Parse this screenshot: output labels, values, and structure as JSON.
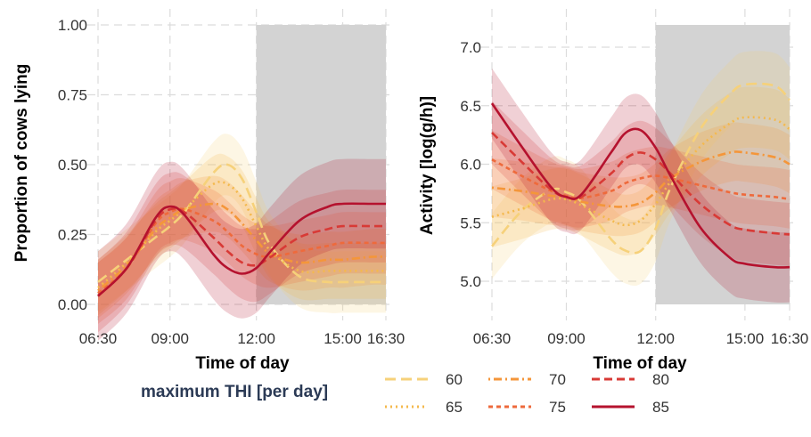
{
  "chart_data": [
    {
      "type": "line",
      "xlabel": "Time of day",
      "ylabel": "Proportion of cows lying",
      "xlim": [
        "06:30",
        "16:30"
      ],
      "ylim": [
        0,
        1
      ],
      "x_ticks": [
        "06:30",
        "09:00",
        "12:00",
        "15:00",
        "16:30"
      ],
      "y_ticks": [
        "0.00",
        "0.25",
        "0.50",
        "0.75",
        "1.00"
      ],
      "shaded_period": [
        "12:00",
        "16:30"
      ],
      "grid": true,
      "x": [
        "06:30",
        "07:30",
        "08:30",
        "09:00",
        "09:30",
        "10:30",
        "11:00",
        "11:30",
        "12:00",
        "12:30",
        "13:30",
        "14:30",
        "15:00",
        "16:00",
        "16:30"
      ],
      "series": [
        {
          "name": "60",
          "values": [
            0.08,
            0.16,
            0.24,
            0.28,
            0.33,
            0.47,
            0.5,
            0.45,
            0.33,
            0.21,
            0.1,
            0.08,
            0.08,
            0.08,
            0.08
          ],
          "band": 0.11
        },
        {
          "name": "65",
          "values": [
            0.06,
            0.15,
            0.26,
            0.3,
            0.34,
            0.43,
            0.43,
            0.38,
            0.28,
            0.19,
            0.12,
            0.12,
            0.12,
            0.12,
            0.12
          ],
          "band": 0.1
        },
        {
          "name": "70",
          "values": [
            0.05,
            0.14,
            0.27,
            0.31,
            0.34,
            0.36,
            0.34,
            0.29,
            0.23,
            0.18,
            0.15,
            0.16,
            0.16,
            0.17,
            0.17
          ],
          "band": 0.1
        },
        {
          "name": "75",
          "values": [
            0.04,
            0.13,
            0.29,
            0.33,
            0.34,
            0.3,
            0.26,
            0.21,
            0.18,
            0.17,
            0.19,
            0.21,
            0.22,
            0.22,
            0.22
          ],
          "band": 0.11
        },
        {
          "name": "80",
          "values": [
            0.03,
            0.13,
            0.3,
            0.34,
            0.33,
            0.24,
            0.19,
            0.15,
            0.14,
            0.17,
            0.24,
            0.27,
            0.28,
            0.28,
            0.28
          ],
          "band": 0.13
        },
        {
          "name": "85",
          "values": [
            0.03,
            0.13,
            0.31,
            0.35,
            0.32,
            0.18,
            0.13,
            0.11,
            0.13,
            0.19,
            0.3,
            0.35,
            0.36,
            0.36,
            0.36
          ],
          "band": 0.16
        }
      ]
    },
    {
      "type": "line",
      "xlabel": "Time of day",
      "ylabel": "Activity [log(g/h)]",
      "xlim": [
        "06:30",
        "16:30"
      ],
      "ylim": [
        4.8,
        7.2
      ],
      "x_ticks": [
        "06:30",
        "09:00",
        "12:00",
        "15:00",
        "16:30"
      ],
      "y_ticks": [
        "5.0",
        "5.5",
        "6.0",
        "6.5",
        "7.0"
      ],
      "shaded_period": [
        "12:00",
        "16:30"
      ],
      "grid": true,
      "x": [
        "06:30",
        "07:30",
        "08:30",
        "09:00",
        "09:30",
        "10:30",
        "11:00",
        "11:30",
        "12:00",
        "12:30",
        "13:30",
        "14:30",
        "15:00",
        "16:00",
        "16:30"
      ],
      "series": [
        {
          "name": "60",
          "values": [
            5.3,
            5.6,
            5.78,
            5.76,
            5.68,
            5.36,
            5.26,
            5.26,
            5.45,
            5.8,
            6.3,
            6.6,
            6.68,
            6.67,
            6.55
          ],
          "band": 0.28
        },
        {
          "name": "65",
          "values": [
            5.55,
            5.62,
            5.7,
            5.7,
            5.65,
            5.52,
            5.48,
            5.52,
            5.66,
            5.85,
            6.15,
            6.35,
            6.4,
            6.38,
            6.3
          ],
          "band": 0.26
        },
        {
          "name": "70",
          "values": [
            5.8,
            5.77,
            5.73,
            5.72,
            5.68,
            5.64,
            5.64,
            5.67,
            5.76,
            5.88,
            6.02,
            6.1,
            6.1,
            6.06,
            6.0
          ],
          "band": 0.25
        },
        {
          "name": "75",
          "values": [
            6.04,
            5.9,
            5.77,
            5.73,
            5.71,
            5.77,
            5.84,
            5.88,
            5.9,
            5.88,
            5.82,
            5.76,
            5.74,
            5.72,
            5.7
          ],
          "band": 0.25
        },
        {
          "name": "80",
          "values": [
            6.27,
            6.02,
            5.78,
            5.72,
            5.72,
            5.92,
            6.05,
            6.1,
            6.04,
            5.92,
            5.66,
            5.48,
            5.44,
            5.41,
            5.4
          ],
          "band": 0.27
        },
        {
          "name": "85",
          "values": [
            6.52,
            6.15,
            5.8,
            5.72,
            5.74,
            6.1,
            6.27,
            6.29,
            6.14,
            5.9,
            5.46,
            5.2,
            5.15,
            5.12,
            5.12
          ],
          "band": 0.3
        }
      ]
    }
  ],
  "legend": {
    "title": "maximum THI [per day]",
    "items": [
      {
        "label": "60",
        "color": "#f6d17a",
        "dash": "long-dash"
      },
      {
        "label": "65",
        "color": "#f4b94d",
        "dash": "dotted"
      },
      {
        "label": "70",
        "color": "#f4963a",
        "dash": "dot-dash"
      },
      {
        "label": "75",
        "color": "#ee6a3c",
        "dash": "short-dash"
      },
      {
        "label": "80",
        "color": "#d83a36",
        "dash": "dashed"
      },
      {
        "label": "85",
        "color": "#b5122e",
        "dash": "solid"
      }
    ]
  }
}
